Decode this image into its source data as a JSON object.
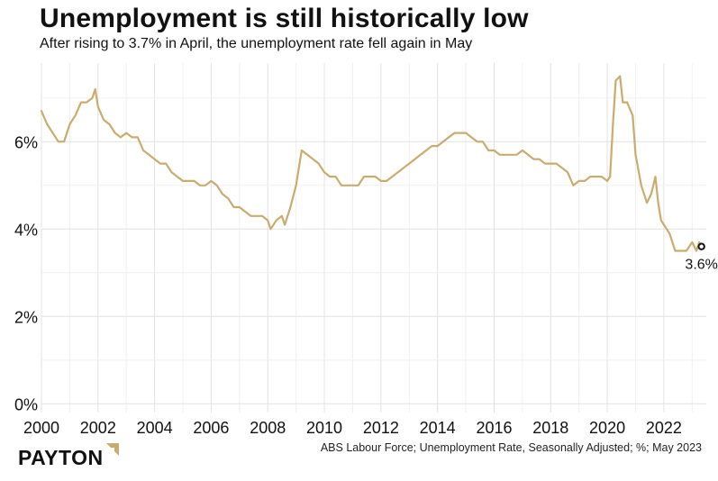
{
  "header": {
    "title": "Unemployment is still historically low",
    "subtitle": "After rising to 3.7% in April, the unemployment rate fell again in May"
  },
  "footer": {
    "source": "ABS Labour Force; Unemployment Rate, Seasonally Adjusted; %; May 2023",
    "brand": "PAYTON"
  },
  "colors": {
    "line": "#c9ac6e",
    "grid": "#e6e6e6",
    "text": "#111111",
    "logo_accent": "#c9ac6e"
  },
  "chart_data": {
    "type": "line",
    "title": "",
    "xlabel": "",
    "ylabel": "",
    "xlim": [
      2000.0,
      2023.5
    ],
    "ylim": [
      -0.2,
      7.8
    ],
    "grid": true,
    "y_ticks": [
      {
        "value": 0,
        "label": "0%"
      },
      {
        "value": 2,
        "label": "2%"
      },
      {
        "value": 4,
        "label": "4%"
      },
      {
        "value": 6,
        "label": "6%"
      }
    ],
    "x_ticks": [
      {
        "value": 2000,
        "label": "2000"
      },
      {
        "value": 2002,
        "label": "2002"
      },
      {
        "value": 2004,
        "label": "2004"
      },
      {
        "value": 2006,
        "label": "2006"
      },
      {
        "value": 2008,
        "label": "2008"
      },
      {
        "value": 2010,
        "label": "2010"
      },
      {
        "value": 2012,
        "label": "2012"
      },
      {
        "value": 2014,
        "label": "2014"
      },
      {
        "value": 2016,
        "label": "2016"
      },
      {
        "value": 2018,
        "label": "2018"
      },
      {
        "value": 2020,
        "label": "2020"
      },
      {
        "value": 2022,
        "label": "2022"
      }
    ],
    "series": [
      {
        "name": "",
        "x": [
          2000.0,
          2000.2,
          2000.4,
          2000.6,
          2000.8,
          2001.0,
          2001.2,
          2001.4,
          2001.6,
          2001.8,
          2001.9,
          2002.0,
          2002.2,
          2002.4,
          2002.6,
          2002.8,
          2003.0,
          2003.2,
          2003.4,
          2003.6,
          2003.8,
          2004.0,
          2004.2,
          2004.4,
          2004.6,
          2004.8,
          2005.0,
          2005.2,
          2005.4,
          2005.6,
          2005.8,
          2006.0,
          2006.2,
          2006.4,
          2006.6,
          2006.8,
          2007.0,
          2007.2,
          2007.4,
          2007.6,
          2007.8,
          2008.0,
          2008.1,
          2008.3,
          2008.5,
          2008.6,
          2008.8,
          2009.0,
          2009.2,
          2009.4,
          2009.6,
          2009.8,
          2010.0,
          2010.2,
          2010.4,
          2010.6,
          2010.8,
          2011.0,
          2011.2,
          2011.4,
          2011.6,
          2011.8,
          2012.0,
          2012.2,
          2012.4,
          2012.6,
          2012.8,
          2013.0,
          2013.2,
          2013.4,
          2013.6,
          2013.8,
          2014.0,
          2014.2,
          2014.4,
          2014.6,
          2014.8,
          2015.0,
          2015.2,
          2015.4,
          2015.6,
          2015.8,
          2016.0,
          2016.2,
          2016.4,
          2016.6,
          2016.8,
          2017.0,
          2017.2,
          2017.4,
          2017.6,
          2017.8,
          2018.0,
          2018.2,
          2018.4,
          2018.6,
          2018.8,
          2019.0,
          2019.2,
          2019.4,
          2019.6,
          2019.8,
          2020.0,
          2020.1,
          2020.2,
          2020.3,
          2020.45,
          2020.55,
          2020.7,
          2020.9,
          2021.0,
          2021.2,
          2021.4,
          2021.55,
          2021.7,
          2021.8,
          2021.9,
          2022.0,
          2022.2,
          2022.4,
          2022.6,
          2022.8,
          2023.0,
          2023.15,
          2023.25,
          2023.33
        ],
        "values": [
          6.7,
          6.4,
          6.2,
          6.0,
          6.0,
          6.4,
          6.6,
          6.9,
          6.9,
          7.0,
          7.2,
          6.8,
          6.5,
          6.4,
          6.2,
          6.1,
          6.2,
          6.1,
          6.1,
          5.8,
          5.7,
          5.6,
          5.5,
          5.5,
          5.3,
          5.2,
          5.1,
          5.1,
          5.1,
          5.0,
          5.0,
          5.1,
          5.0,
          4.8,
          4.7,
          4.5,
          4.5,
          4.4,
          4.3,
          4.3,
          4.3,
          4.2,
          4.0,
          4.2,
          4.3,
          4.1,
          4.5,
          5.0,
          5.8,
          5.7,
          5.6,
          5.5,
          5.3,
          5.2,
          5.2,
          5.0,
          5.0,
          5.0,
          5.0,
          5.2,
          5.2,
          5.2,
          5.1,
          5.1,
          5.2,
          5.3,
          5.4,
          5.5,
          5.6,
          5.7,
          5.8,
          5.9,
          5.9,
          6.0,
          6.1,
          6.2,
          6.2,
          6.2,
          6.1,
          6.0,
          6.0,
          5.8,
          5.8,
          5.7,
          5.7,
          5.7,
          5.7,
          5.8,
          5.7,
          5.6,
          5.6,
          5.5,
          5.5,
          5.5,
          5.4,
          5.3,
          5.0,
          5.1,
          5.1,
          5.2,
          5.2,
          5.2,
          5.1,
          5.2,
          6.4,
          7.4,
          7.5,
          6.9,
          6.9,
          6.6,
          5.7,
          5.0,
          4.6,
          4.8,
          5.2,
          4.6,
          4.2,
          4.1,
          3.9,
          3.5,
          3.5,
          3.5,
          3.7,
          3.5,
          3.7,
          3.6
        ]
      }
    ],
    "annotations": [
      {
        "x": 2023.33,
        "y": 3.6,
        "text": "3.6%"
      }
    ]
  }
}
